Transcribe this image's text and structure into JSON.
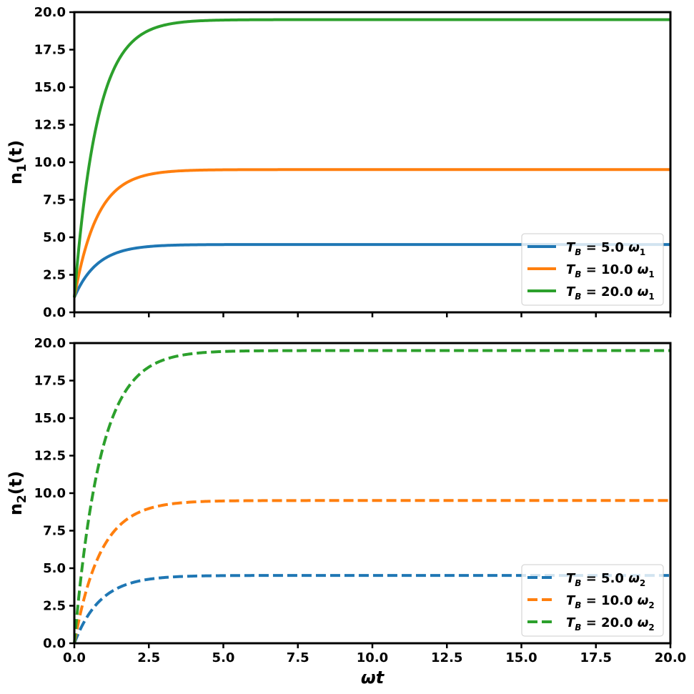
{
  "chart_data": [
    {
      "type": "line",
      "ylabel_main": "n",
      "ylabel_sub": "1",
      "ylabel_suffix": "(t)",
      "xlabel": "",
      "xlim": [
        0,
        20
      ],
      "ylim": [
        0,
        20
      ],
      "xticks": [
        0,
        2.5,
        5,
        7.5,
        10,
        12.5,
        15,
        17.5,
        20
      ],
      "show_xtick_labels": false,
      "yticks": [
        "0.0",
        "2.5",
        "5.0",
        "7.5",
        "10.0",
        "12.5",
        "15.0",
        "17.5",
        "20.0"
      ],
      "legend_position": "lower-right",
      "line_style": "solid",
      "series": [
        {
          "name": "T_B = 5.0 ω_1",
          "label_main": "T",
          "label_sub": "B",
          "label_mid": " = 5.0 ",
          "label_omega": "ω",
          "label_omega_sub": "1",
          "color": "#1f77b4",
          "start": 1.0,
          "steady": 4.52,
          "rate": 1.3
        },
        {
          "name": "T_B = 10.0 ω_1",
          "label_main": "T",
          "label_sub": "B",
          "label_mid": " = 10.0 ",
          "label_omega": "ω",
          "label_omega_sub": "1",
          "color": "#ff7f0e",
          "start": 1.0,
          "steady": 9.51,
          "rate": 1.3
        },
        {
          "name": "T_B = 20.0 ω_1",
          "label_main": "T",
          "label_sub": "B",
          "label_mid": " = 20.0 ",
          "label_omega": "ω",
          "label_omega_sub": "1",
          "color": "#2ca02c",
          "start": 1.0,
          "steady": 19.5,
          "rate": 1.3
        }
      ]
    },
    {
      "type": "line",
      "ylabel_main": "n",
      "ylabel_sub": "2",
      "ylabel_suffix": "(t)",
      "xlabel": "ωt",
      "xlim": [
        0,
        20
      ],
      "ylim": [
        0,
        20
      ],
      "xticks": [
        0,
        2.5,
        5,
        7.5,
        10,
        12.5,
        15,
        17.5,
        20
      ],
      "xtick_labels": [
        "0.0",
        "2.5",
        "5.0",
        "7.5",
        "10.0",
        "12.5",
        "15.0",
        "17.5",
        "20.0"
      ],
      "show_xtick_labels": true,
      "yticks": [
        "0.0",
        "2.5",
        "5.0",
        "7.5",
        "10.0",
        "12.5",
        "15.0",
        "17.5",
        "20.0"
      ],
      "legend_position": "lower-right",
      "line_style": "dashed",
      "series": [
        {
          "name": "T_B = 5.0 ω_2",
          "label_main": "T",
          "label_sub": "B",
          "label_mid": " = 5.0 ",
          "label_omega": "ω",
          "label_omega_sub": "2",
          "color": "#1f77b4",
          "start": 0.0,
          "steady": 4.52,
          "rate": 1.15
        },
        {
          "name": "T_B = 10.0 ω_2",
          "label_main": "T",
          "label_sub": "B",
          "label_mid": " = 10.0 ",
          "label_omega": "ω",
          "label_omega_sub": "2",
          "color": "#ff7f0e",
          "start": 0.0,
          "steady": 9.51,
          "rate": 1.15
        },
        {
          "name": "T_B = 20.0 ω_2",
          "label_main": "T",
          "label_sub": "B",
          "label_mid": " = 20.0 ",
          "label_omega": "ω",
          "label_omega_sub": "2",
          "color": "#2ca02c",
          "start": 0.0,
          "steady": 19.5,
          "rate": 1.15
        }
      ]
    }
  ]
}
